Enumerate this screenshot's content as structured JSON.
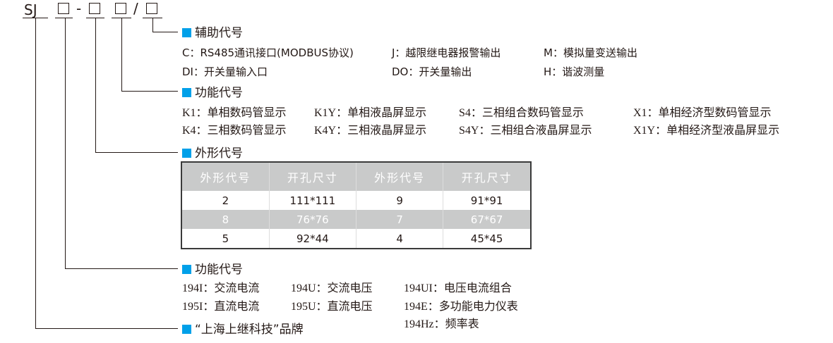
{
  "model": {
    "prefix": "SJ",
    "dash": "-",
    "slash": "/"
  },
  "aux": {
    "title": "辅助代号",
    "items": [
      "C：RS485通讯接口(MODBUS协议)",
      "J：越限继电器报警输出",
      "M：模拟量变送输出",
      "DI：开关量输入口",
      "DO：开关量输出",
      "H：谐波测量"
    ]
  },
  "display": {
    "title": "功能代号",
    "items": [
      "K1：单相数码管显示",
      "K1Y：单相液晶屏显示",
      "S4：三相组合数码管显示",
      "X1：单相经济型数码管显示",
      "K4：三相数码管显示",
      "K4Y：三相液晶屏显示",
      "S4Y：三相组合液晶屏显示",
      "X1Y：单相经济型液晶屏显示"
    ]
  },
  "shape": {
    "title": "外形代号",
    "headers": [
      "外形代号",
      "开孔尺寸",
      "外形代号",
      "开孔尺寸"
    ],
    "rows": [
      [
        "2",
        "111*111",
        "9",
        "91*91"
      ],
      [
        "8",
        "76*76",
        "7",
        "67*67"
      ],
      [
        "5",
        "92*44",
        "4",
        "45*45"
      ]
    ]
  },
  "function": {
    "title": "功能代号",
    "items": [
      "194I：交流电流",
      "194U：交流电压",
      "194UI：电压电流组合",
      "195I：直流电流",
      "195U：直流电压",
      "194E：多功能电力仪表",
      "194Hz：频率表"
    ]
  },
  "brand": {
    "title": "“上海上继科技”品牌"
  },
  "colors": {
    "accent": "#00a0e9",
    "table_header": "#c9caca"
  }
}
